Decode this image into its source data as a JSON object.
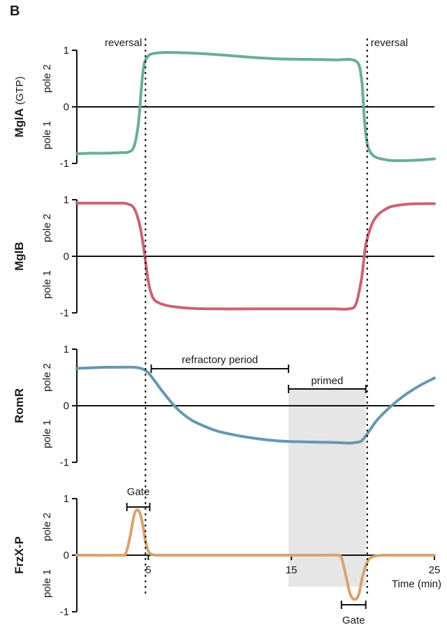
{
  "panel_label": "B",
  "chart_data": {
    "type": "line",
    "xlabel": "Time (min)",
    "xlim": [
      0,
      25
    ],
    "x_ticks": [
      "5",
      "15",
      "25"
    ],
    "x_tick_values": [
      5,
      15,
      25
    ],
    "ylim": [
      -1,
      1
    ],
    "y_ticks": [
      "1",
      "0",
      "-1"
    ],
    "pole_labels": {
      "top": "pole 2",
      "bottom": "pole 1"
    },
    "panels": [
      {
        "ylabel": "MglA",
        "ylabel_suffix": "(GTP)",
        "color": "#6aae96",
        "x": [
          0,
          1,
          2,
          3,
          3.6,
          4,
          4.3,
          4.5,
          4.7,
          5,
          5.3,
          6,
          8,
          10,
          12,
          14,
          16,
          18,
          19.5,
          19.9,
          20.1,
          20.3,
          20.6,
          21,
          21.5,
          22,
          23,
          24,
          25
        ],
        "values": [
          -0.83,
          -0.82,
          -0.82,
          -0.81,
          -0.8,
          -0.7,
          -0.3,
          0.3,
          0.75,
          0.9,
          0.94,
          0.96,
          0.95,
          0.92,
          0.88,
          0.85,
          0.84,
          0.83,
          0.81,
          0.5,
          -0.2,
          -0.65,
          -0.83,
          -0.9,
          -0.93,
          -0.95,
          -0.95,
          -0.94,
          -0.92
        ]
      },
      {
        "ylabel": "MglB",
        "ylabel_suffix": "",
        "color": "#c96474",
        "x": [
          0,
          1,
          2,
          3,
          3.5,
          4,
          4.4,
          4.7,
          5,
          5.3,
          5.7,
          6.5,
          8,
          10,
          12,
          14,
          16,
          18,
          19,
          19.5,
          19.9,
          20.2,
          20.6,
          21,
          21.5,
          22,
          23,
          24,
          25
        ],
        "values": [
          0.94,
          0.94,
          0.94,
          0.94,
          0.93,
          0.85,
          0.55,
          0.1,
          -0.45,
          -0.72,
          -0.82,
          -0.88,
          -0.92,
          -0.93,
          -0.93,
          -0.93,
          -0.93,
          -0.93,
          -0.93,
          -0.85,
          -0.4,
          0.2,
          0.55,
          0.72,
          0.82,
          0.88,
          0.92,
          0.93,
          0.93
        ]
      },
      {
        "ylabel": "RomR",
        "ylabel_suffix": "",
        "color": "#6897b1",
        "x": [
          0,
          1,
          2,
          3,
          4,
          4.6,
          5,
          5.5,
          6,
          7,
          8,
          9,
          10,
          12,
          14,
          16,
          18,
          19,
          19.5,
          19.9,
          20.3,
          21,
          22,
          23,
          24,
          25
        ],
        "values": [
          0.66,
          0.67,
          0.68,
          0.68,
          0.68,
          0.65,
          0.58,
          0.42,
          0.25,
          -0.05,
          -0.25,
          -0.37,
          -0.46,
          -0.56,
          -0.62,
          -0.64,
          -0.65,
          -0.66,
          -0.65,
          -0.62,
          -0.5,
          -0.25,
          0.0,
          0.2,
          0.36,
          0.49
        ]
      },
      {
        "ylabel": "FrzX-P",
        "ylabel_suffix": "",
        "color": "#d8a36d",
        "x": [
          0,
          3,
          3.4,
          3.7,
          4,
          4.2,
          4.4,
          4.6,
          4.8,
          5,
          5.3,
          6,
          10,
          15,
          17,
          18.2,
          18.5,
          18.8,
          19.1,
          19.4,
          19.7,
          20,
          20.4,
          21,
          22,
          25
        ],
        "values": [
          0,
          0,
          0.02,
          0.3,
          0.7,
          0.8,
          0.75,
          0.55,
          0.25,
          0.07,
          0.01,
          0,
          0,
          0,
          0,
          0,
          -0.05,
          -0.35,
          -0.68,
          -0.78,
          -0.7,
          -0.35,
          -0.08,
          -0.01,
          0,
          0
        ]
      }
    ],
    "reversal_times": [
      4.8,
      20.3
    ],
    "annotations": {
      "reversal_label": "reversal",
      "refractory_label": "refractory period",
      "primed_label": "primed",
      "gate_label": "Gate"
    },
    "refractory_range": [
      5.2,
      14.8
    ],
    "primed_range": [
      14.8,
      20.2
    ],
    "gates": [
      {
        "range": [
          3.5,
          5.1
        ]
      },
      {
        "range": [
          18.5,
          20.2
        ]
      }
    ]
  }
}
